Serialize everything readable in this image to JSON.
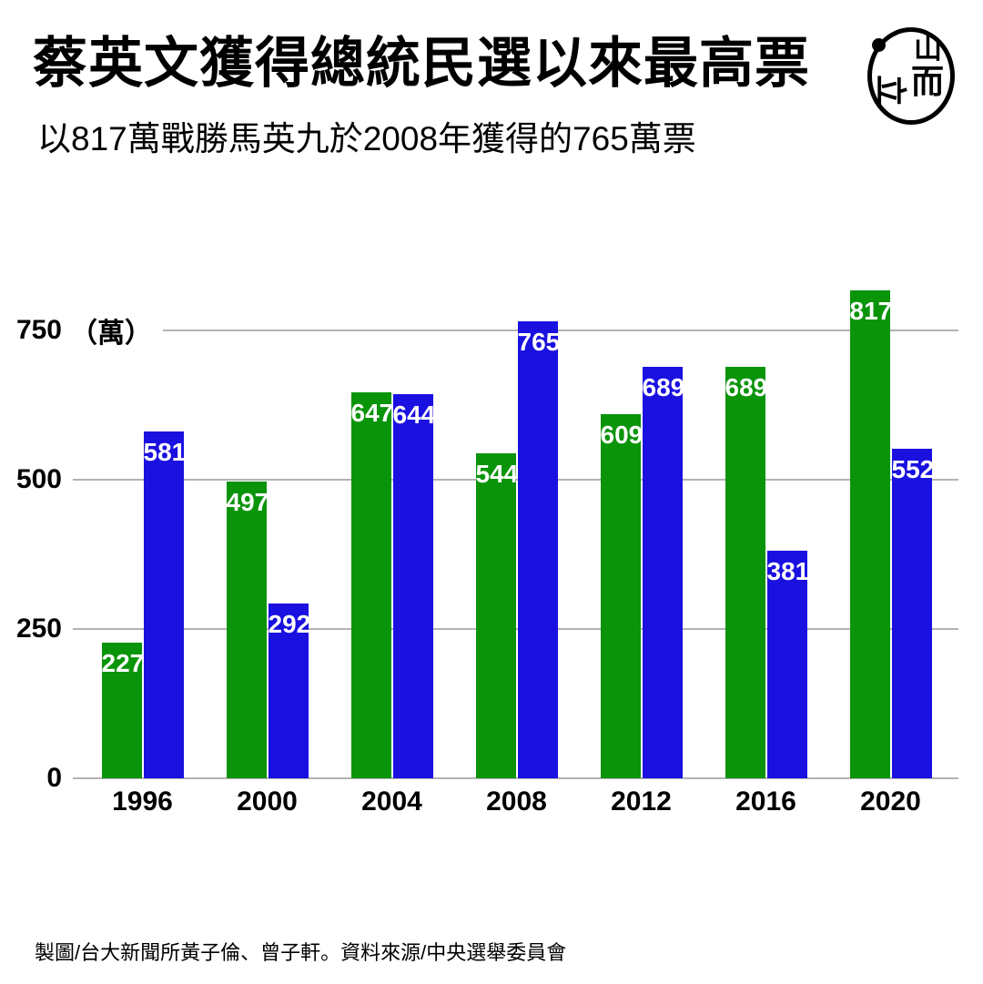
{
  "header": {
    "title": "蔡英文獲得總統民選以來最高票",
    "subtitle": "以817萬戰勝馬英九於2008年獲得的765萬票",
    "logo": {
      "glyphs": {
        "side": "立",
        "top_right": "山",
        "bottom_right": "而"
      }
    }
  },
  "chart_data": {
    "type": "bar",
    "title": "蔡英文獲得總統民選以來最高票",
    "subtitle": "以817萬戰勝馬英九於2008年獲得的765萬票",
    "categories": [
      "1996",
      "2000",
      "2004",
      "2008",
      "2012",
      "2016",
      "2020"
    ],
    "series": [
      {
        "name": "green",
        "color": "#0a940a",
        "values": [
          227,
          497,
          647,
          544,
          609,
          689,
          817
        ]
      },
      {
        "name": "blue",
        "color": "#1a10e0",
        "values": [
          581,
          292,
          644,
          765,
          689,
          381,
          552
        ]
      }
    ],
    "y_axis": {
      "unit": "（萬）",
      "ticks": [
        750,
        500,
        250,
        0
      ],
      "range": [
        0,
        840
      ],
      "grid": true
    },
    "xlabel": "",
    "ylabel": "（萬）",
    "legend": "none",
    "value_labels_position": "inside-top"
  },
  "footer": {
    "credit": "製圖/台大新聞所黃子倫、曾子軒。資料來源/中央選舉委員會"
  },
  "colors": {
    "green_bar": "#0a940a",
    "blue_bar": "#1a10e0",
    "gridline": "#b3b3b3",
    "text": "#000000",
    "bar_label": "#ffffff"
  }
}
